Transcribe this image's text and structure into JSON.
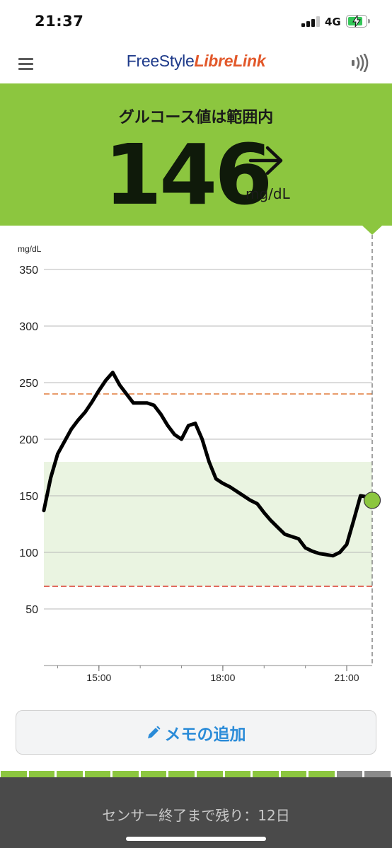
{
  "status_bar": {
    "time": "21:37",
    "network": "4G",
    "signal_bars": 4,
    "signal_bars_active": 3,
    "battery_level": 0.85,
    "battery_charging": true
  },
  "header": {
    "brand_part1": "FreeStyle",
    "brand_part2": "LibreLink",
    "menu_icon": "hamburger-menu-icon",
    "scan_icon": "nfc-scan-icon"
  },
  "glucose": {
    "status": "グルコース値は範囲内",
    "value": "146",
    "unit": "mg/dL",
    "trend": "right-arrow",
    "panel_color": "#8cc63f"
  },
  "chart_data": {
    "type": "line",
    "ylabel": "mg/dL",
    "ylim": [
      0,
      350
    ],
    "yticks": [
      50,
      100,
      150,
      200,
      250,
      300,
      350
    ],
    "xticks": [
      "15:00",
      "18:00",
      "21:00"
    ],
    "x_start_minutes_from_0000": 820,
    "x_end_minutes_from_0000": 1297,
    "target_range": [
      70,
      180
    ],
    "high_threshold": 240,
    "low_threshold": 70,
    "current_time": "21:37",
    "series": [
      {
        "x": [
          "13:40",
          "13:50",
          "14:00",
          "14:10",
          "14:20",
          "14:30",
          "14:40",
          "14:50",
          "15:00",
          "15:10",
          "15:20",
          "15:30",
          "15:40",
          "15:50",
          "16:00",
          "16:10",
          "16:20",
          "16:30",
          "16:40",
          "16:50",
          "17:00",
          "17:10",
          "17:20",
          "17:30",
          "17:40",
          "17:50",
          "18:00",
          "18:10",
          "18:20",
          "18:30",
          "18:40",
          "18:50",
          "19:00",
          "19:10",
          "19:20",
          "19:30",
          "19:40",
          "19:50",
          "20:00",
          "20:10",
          "20:20",
          "20:30",
          "20:40",
          "20:50",
          "21:00",
          "21:10",
          "21:20",
          "21:30",
          "21:37"
        ],
        "values": [
          137,
          166,
          187,
          198,
          209,
          217,
          224,
          233,
          243,
          252,
          259,
          248,
          240,
          232,
          232,
          232,
          230,
          222,
          212,
          204,
          200,
          212,
          214,
          200,
          180,
          165,
          161,
          158,
          154,
          150,
          146,
          143,
          135,
          128,
          122,
          116,
          114,
          112,
          104,
          101,
          99,
          98,
          97,
          100,
          107,
          128,
          150,
          149,
          146
        ]
      }
    ],
    "colors": {
      "line": "#000000",
      "target_fill": "#eaf4e1",
      "high_line": "#e07b3c",
      "low_line": "#d93a2b",
      "current_marker": "#8cc63f",
      "grid": "#b8b8b8"
    }
  },
  "note_button": {
    "label": "メモの追加",
    "icon": "pencil-icon"
  },
  "sensor": {
    "label": "センサー終了まで残り：12日",
    "days_total": 14,
    "days_elapsed": 12,
    "elapsed_color": "#8cc63f",
    "remaining_color": "#8a8a8a"
  }
}
